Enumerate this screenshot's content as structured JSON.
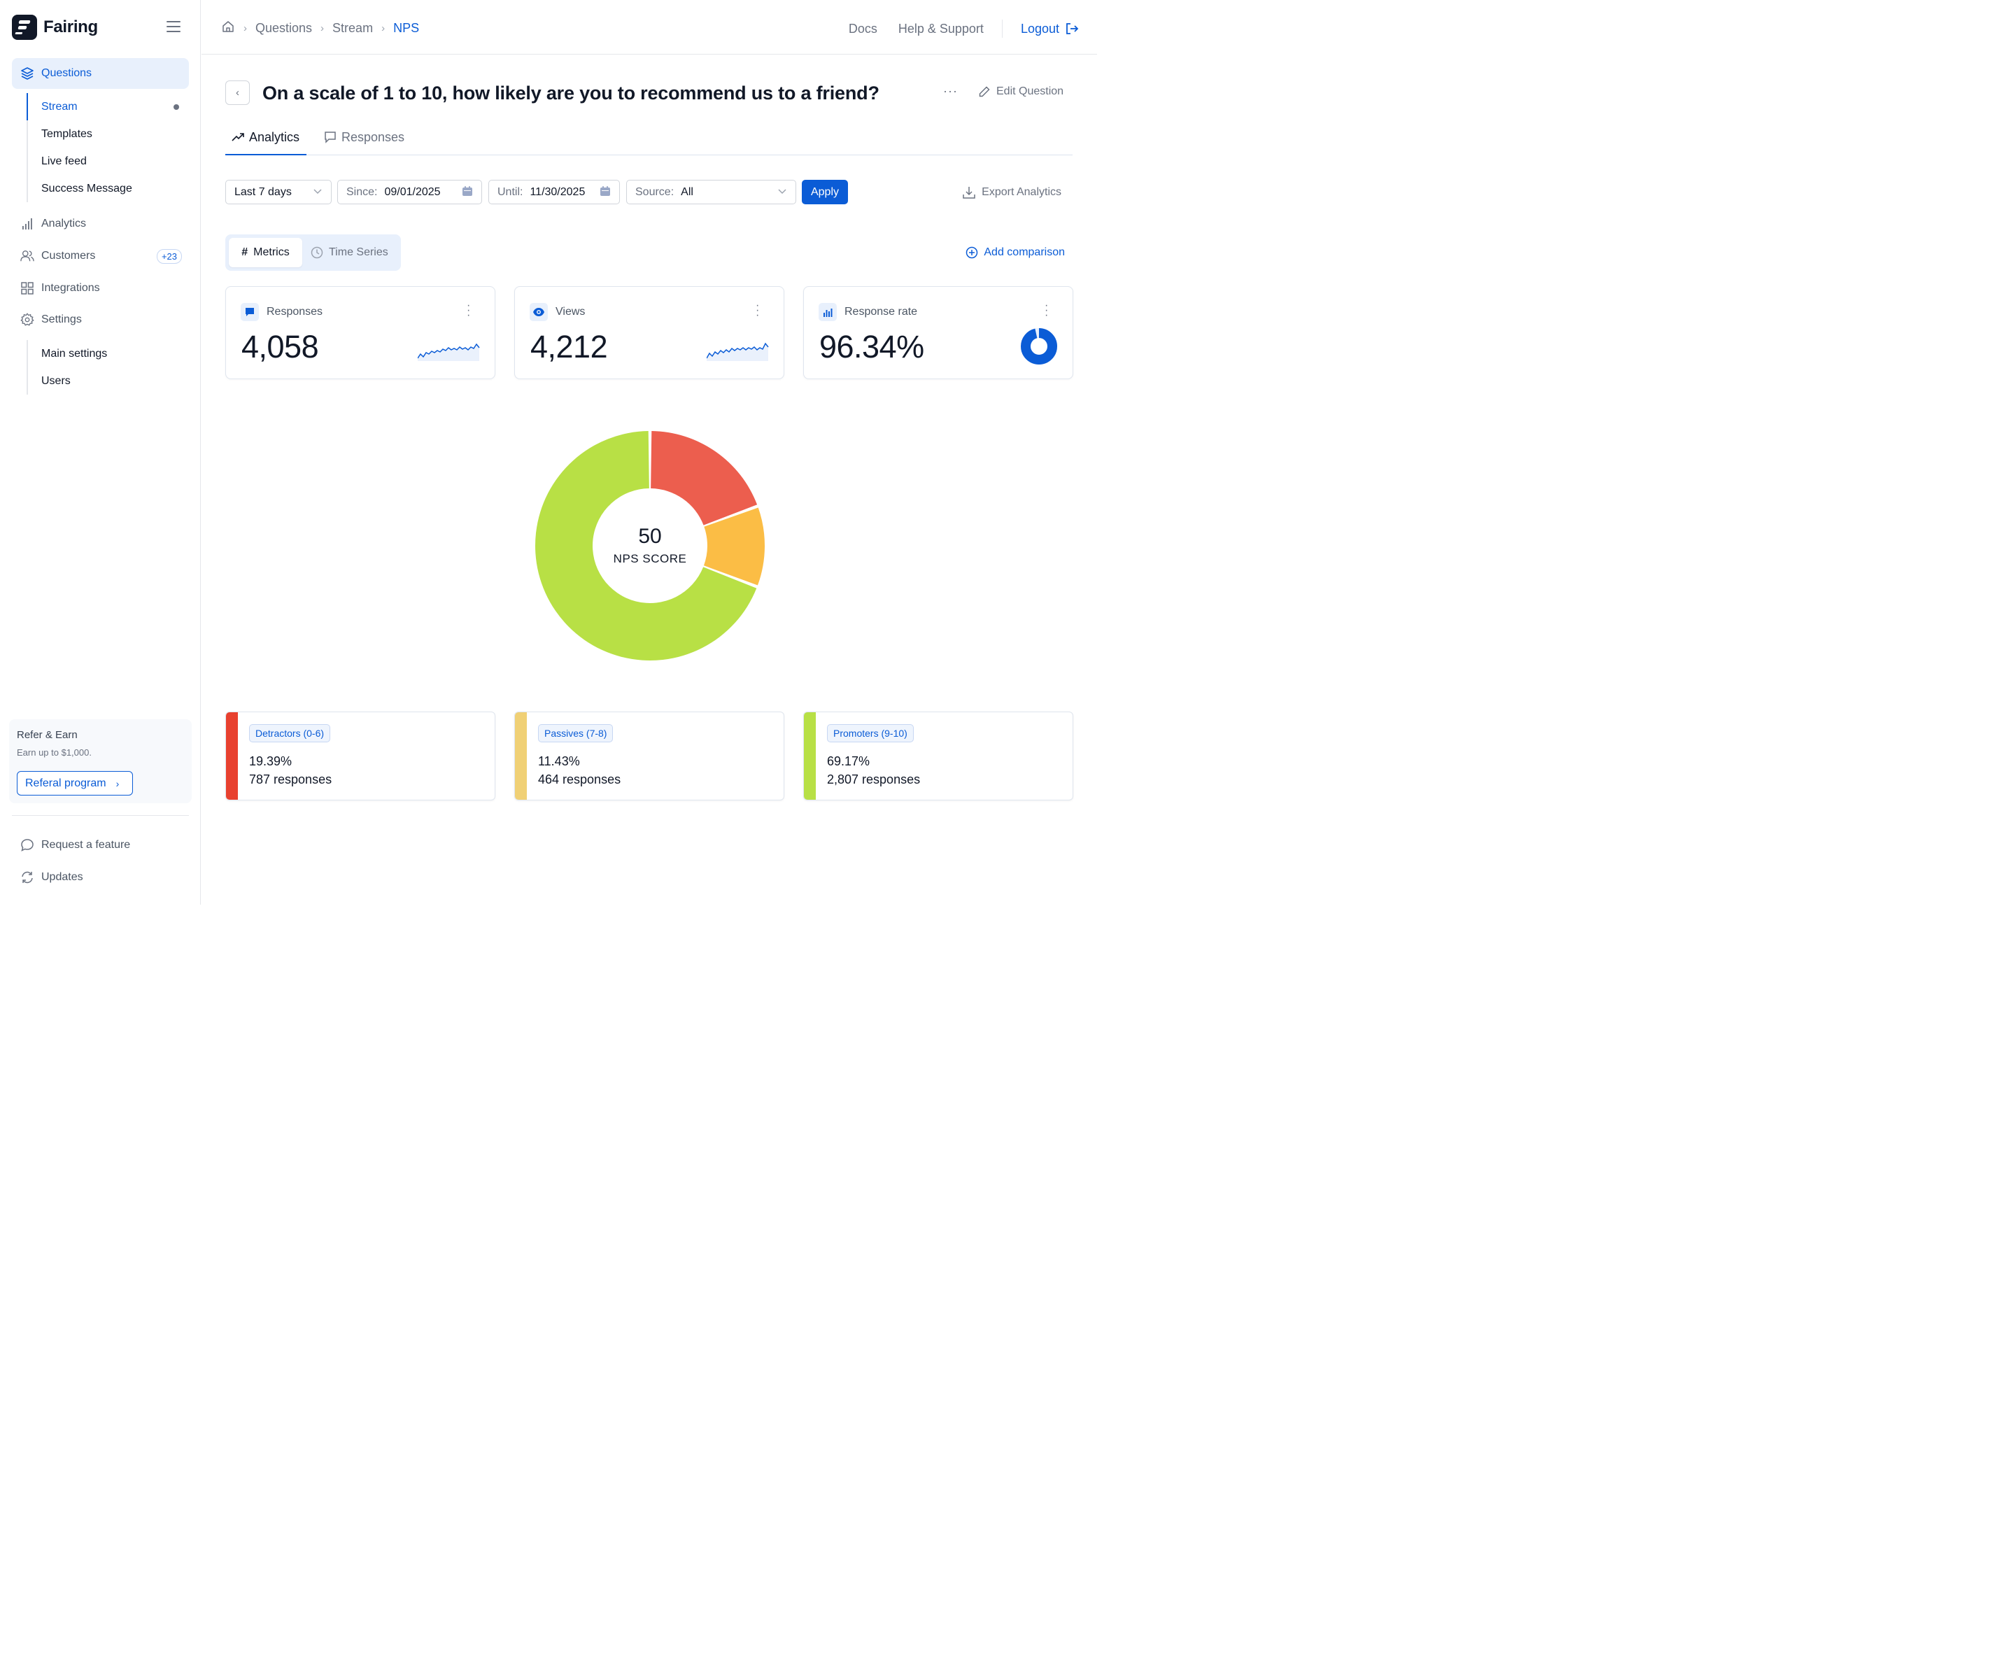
{
  "app": {
    "name": "Fairing"
  },
  "sidebar": {
    "items": [
      {
        "label": "Questions",
        "icon": "layers-icon"
      },
      {
        "label": "Analytics",
        "icon": "bar-chart-icon"
      },
      {
        "label": "Customers",
        "icon": "users-icon",
        "badge": "+23"
      },
      {
        "label": "Integrations",
        "icon": "grid-icon"
      },
      {
        "label": "Settings",
        "icon": "gear-icon"
      }
    ],
    "questions_sub": [
      "Stream",
      "Templates",
      "Live feed",
      "Success Message"
    ],
    "settings_sub": [
      "Main settings",
      "Users"
    ],
    "refer": {
      "title": "Refer & Earn",
      "subtitle": "Earn up to $1,000.",
      "button": "Referal program"
    },
    "bottom": [
      {
        "label": "Request a feature",
        "icon": "chat-bubble-icon"
      },
      {
        "label": "Updates",
        "icon": "refresh-icon"
      }
    ]
  },
  "breadcrumb": [
    "Questions",
    "Stream",
    "NPS"
  ],
  "topnav": {
    "docs": "Docs",
    "help": "Help & Support",
    "logout": "Logout"
  },
  "question": {
    "title": "On a scale of 1 to 10, how likely are you to recommend us to a friend?",
    "edit": "Edit Question"
  },
  "tabs": [
    "Analytics",
    "Responses"
  ],
  "filters": {
    "range": "Last 7 days",
    "since_label": "Since:",
    "since": "09/01/2025",
    "until_label": "Until:",
    "until": "11/30/2025",
    "source_label": "Source:",
    "source": "All",
    "apply": "Apply",
    "export": "Export Analytics"
  },
  "view_toggle": {
    "metrics": "Metrics",
    "timeseries": "Time Series",
    "add_comparison": "Add comparison"
  },
  "metrics": [
    {
      "title": "Responses",
      "value": "4,058",
      "icon": "message-icon"
    },
    {
      "title": "Views",
      "value": "4,212",
      "icon": "eye-icon"
    },
    {
      "title": "Response rate",
      "value": "96.34%",
      "icon": "bar-chart-icon",
      "rate": 0.9634
    }
  ],
  "nps": {
    "score": "50",
    "label": "NPS SCORE"
  },
  "chart_data": {
    "type": "pie",
    "categories": [
      "Detractors (0-6)",
      "Passives (7-8)",
      "Promoters (9-10)"
    ],
    "values": [
      19.39,
      11.43,
      69.17
    ],
    "colors": [
      "#ec5e4e",
      "#fbbd45",
      "#b8e045"
    ]
  },
  "segments": [
    {
      "label": "Detractors (0-6)",
      "pct": "19.39%",
      "count": "787 responses",
      "color": "#e8412f"
    },
    {
      "label": "Passives (7-8)",
      "pct": "11.43%",
      "count": "464 responses",
      "color": "#f0d075"
    },
    {
      "label": "Promoters (9-10)",
      "pct": "69.17%",
      "count": "2,807 responses",
      "color": "#b8e045"
    }
  ]
}
